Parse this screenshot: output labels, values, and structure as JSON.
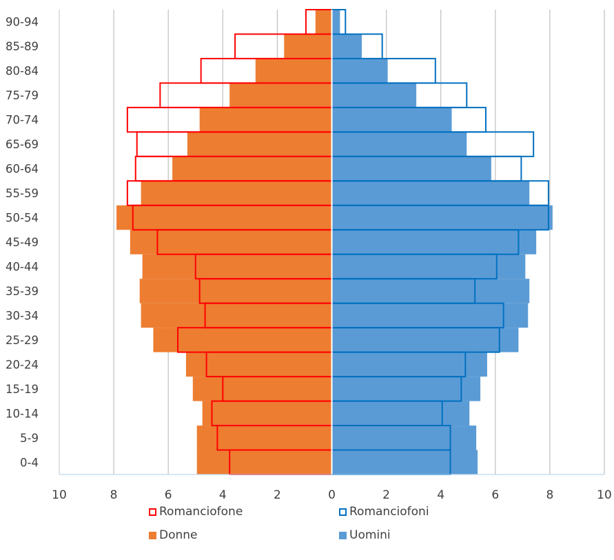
{
  "chart_data": {
    "type": "bar",
    "subtype": "population-pyramid",
    "title": "",
    "xlabel": "",
    "ylabel": "",
    "xlim": [
      -10,
      10
    ],
    "x_ticks": [
      10,
      8,
      6,
      4,
      2,
      0,
      2,
      4,
      6,
      8,
      10
    ],
    "grid": "vertical",
    "legend_position": "bottom",
    "categories": [
      "0-4",
      "5-9",
      "10-14",
      "15-19",
      "20-24",
      "25-29",
      "30-34",
      "35-39",
      "40-44",
      "45-49",
      "50-54",
      "55-59",
      "60-64",
      "65-69",
      "70-74",
      "75-79",
      "80-84",
      "85-89",
      "90-94"
    ],
    "series": [
      {
        "name": "Donne",
        "side": "left",
        "style": "filled",
        "color": "#ED7D31",
        "values": [
          4.95,
          4.95,
          4.75,
          5.1,
          5.35,
          6.55,
          7.0,
          7.05,
          6.95,
          7.4,
          7.9,
          7.0,
          5.85,
          5.3,
          4.85,
          3.75,
          2.8,
          1.75,
          0.6
        ]
      },
      {
        "name": "Uomini",
        "side": "right",
        "style": "filled",
        "color": "#5B9BD5",
        "values": [
          5.35,
          5.3,
          5.05,
          5.45,
          5.7,
          6.85,
          7.2,
          7.25,
          7.1,
          7.5,
          8.1,
          7.25,
          5.85,
          4.95,
          4.4,
          3.1,
          2.05,
          1.1,
          0.3
        ]
      },
      {
        "name": "Romanciofone",
        "side": "left",
        "style": "outline",
        "color": "#FF0000",
        "values": [
          3.75,
          4.2,
          4.4,
          4.0,
          4.6,
          5.65,
          4.65,
          4.85,
          5.0,
          6.4,
          7.3,
          7.5,
          7.2,
          7.15,
          7.5,
          6.3,
          4.8,
          3.55,
          0.95
        ]
      },
      {
        "name": "Romanciofoni",
        "side": "right",
        "style": "outline",
        "color": "#0070C0",
        "values": [
          4.35,
          4.35,
          4.05,
          4.75,
          4.9,
          6.15,
          6.3,
          5.25,
          6.05,
          6.85,
          7.95,
          7.95,
          6.95,
          7.4,
          5.65,
          4.95,
          3.8,
          1.85,
          0.5
        ]
      }
    ]
  },
  "legend": {
    "romanciofone": "Romanciofone",
    "romanciofoni": "Romanciofoni",
    "donne": "Donne",
    "uomini": "Uomini"
  }
}
